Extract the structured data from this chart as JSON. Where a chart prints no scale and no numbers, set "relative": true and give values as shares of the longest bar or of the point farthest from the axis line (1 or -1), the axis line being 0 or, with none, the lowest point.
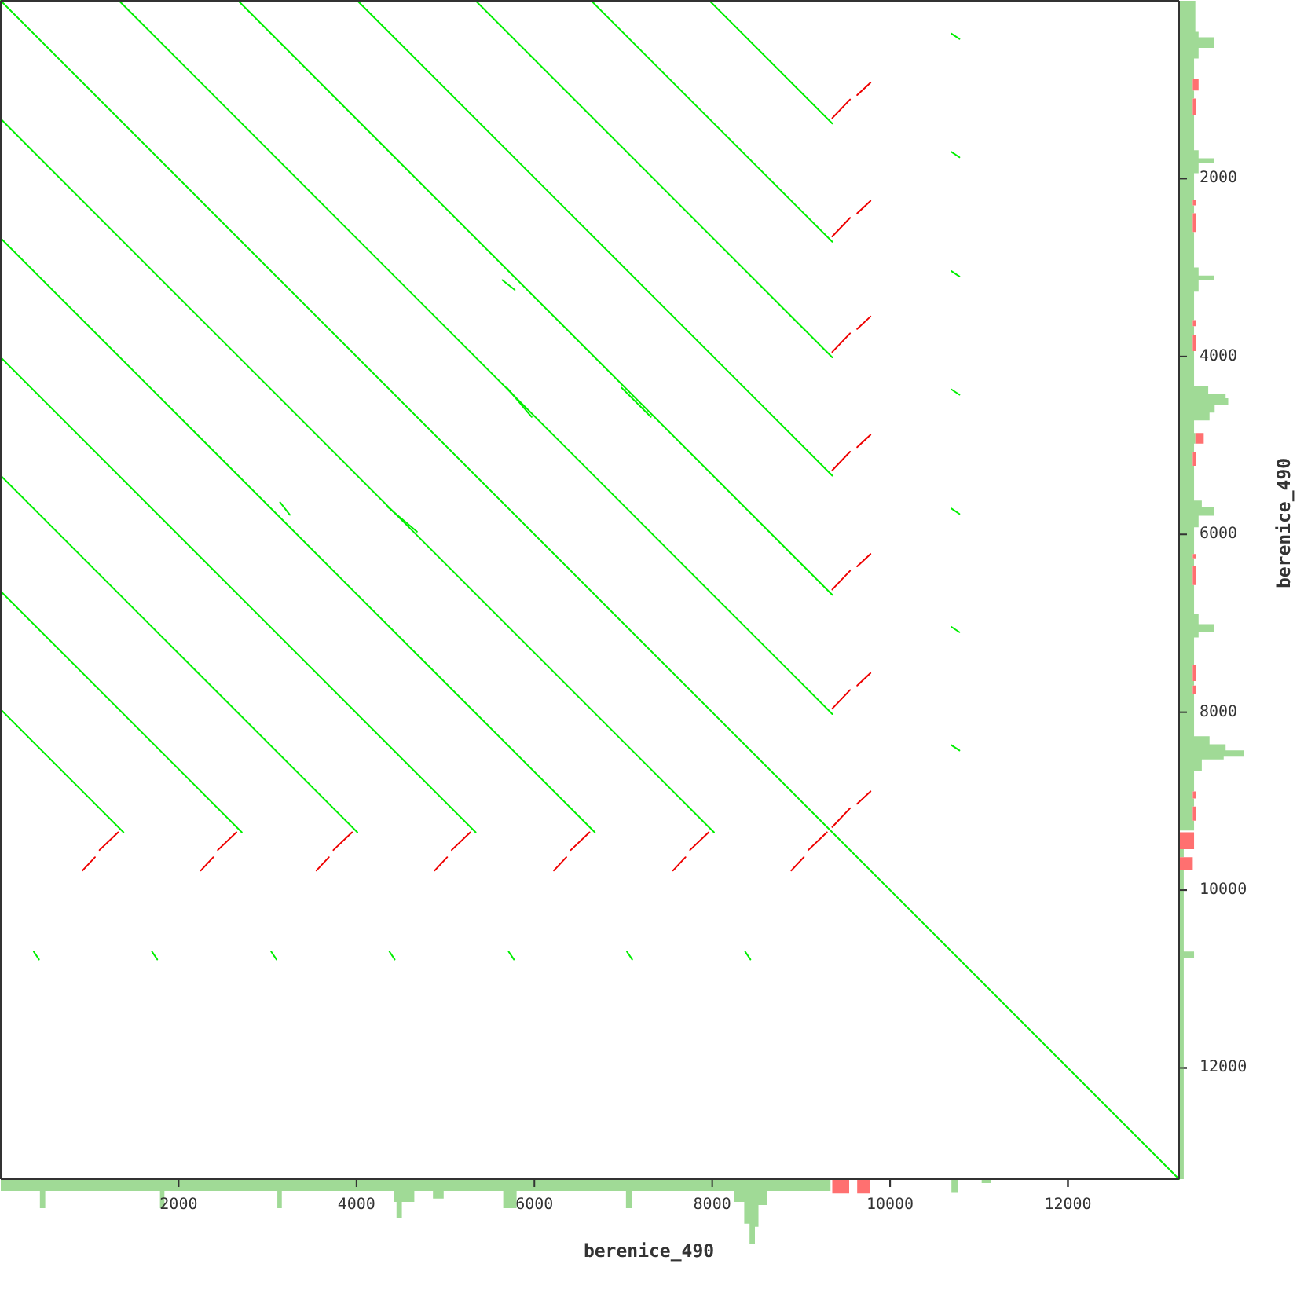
{
  "chart_data": [
    {
      "type": "line",
      "xlim": [
        0,
        13250
      ],
      "ylim": [
        13250,
        0
      ],
      "xticks": [
        2000,
        4000,
        6000,
        8000,
        10000,
        12000
      ],
      "yticks": [
        2000,
        4000,
        6000,
        8000,
        10000,
        12000
      ],
      "tick_labels": false,
      "series": [
        {
          "color": "#00ee00",
          "x": [
            0,
            13250
          ],
          "values": [
            0,
            13250
          ]
        },
        {
          "color": "#00ee00",
          "x": [
            1330,
            9350
          ],
          "values": [
            0,
            8020
          ]
        },
        {
          "color": "#00ee00",
          "x": [
            2670,
            9350
          ],
          "values": [
            0,
            6680
          ]
        },
        {
          "color": "#00ee00",
          "x": [
            4010,
            9350
          ],
          "values": [
            0,
            5340
          ]
        },
        {
          "color": "#00ee00",
          "x": [
            5340,
            9350
          ],
          "values": [
            0,
            4010
          ]
        },
        {
          "color": "#00ee00",
          "x": [
            6640,
            9350
          ],
          "values": [
            0,
            2710
          ]
        },
        {
          "color": "#00ee00",
          "x": [
            7970,
            9350
          ],
          "values": [
            0,
            1380
          ]
        },
        {
          "color": "#00ee00",
          "x": [
            0,
            8020
          ],
          "values": [
            1330,
            9350
          ]
        },
        {
          "color": "#00ee00",
          "x": [
            0,
            6680
          ],
          "values": [
            2670,
            9350
          ]
        },
        {
          "color": "#00ee00",
          "x": [
            0,
            5340
          ],
          "values": [
            4010,
            9350
          ]
        },
        {
          "color": "#00ee00",
          "x": [
            0,
            4010
          ],
          "values": [
            5340,
            9350
          ]
        },
        {
          "color": "#00ee00",
          "x": [
            0,
            2710
          ],
          "values": [
            6640,
            9350
          ]
        },
        {
          "color": "#00ee00",
          "x": [
            0,
            1380
          ],
          "values": [
            7970,
            9350
          ]
        },
        {
          "color": "#00ee00",
          "x": [
            5690,
            5970
          ],
          "values": [
            4350,
            4680
          ]
        },
        {
          "color": "#00ee00",
          "x": [
            6980,
            7310
          ],
          "values": [
            4350,
            4680
          ]
        },
        {
          "color": "#00ee00",
          "x": [
            4350,
            4680
          ],
          "values": [
            5690,
            5970
          ]
        },
        {
          "color": "#00ee00",
          "x": [
            5640,
            5780
          ],
          "values": [
            3140,
            3250
          ]
        },
        {
          "color": "#00ee00",
          "x": [
            3140,
            3250
          ],
          "values": [
            5640,
            5780
          ]
        },
        {
          "color": "#00ee00",
          "x": [
            10690,
            10780
          ],
          "values": [
            370,
            430
          ]
        },
        {
          "color": "#00ee00",
          "x": [
            10690,
            10780
          ],
          "values": [
            1700,
            1760
          ]
        },
        {
          "color": "#00ee00",
          "x": [
            10690,
            10780
          ],
          "values": [
            3040,
            3100
          ]
        },
        {
          "color": "#00ee00",
          "x": [
            10690,
            10780
          ],
          "values": [
            4370,
            4430
          ]
        },
        {
          "color": "#00ee00",
          "x": [
            10690,
            10780
          ],
          "values": [
            5710,
            5770
          ]
        },
        {
          "color": "#00ee00",
          "x": [
            10690,
            10780
          ],
          "values": [
            7040,
            7100
          ]
        },
        {
          "color": "#00ee00",
          "x": [
            10690,
            10780
          ],
          "values": [
            8370,
            8430
          ]
        },
        {
          "color": "#00ee00",
          "x": [
            370,
            430
          ],
          "values": [
            10690,
            10780
          ]
        },
        {
          "color": "#00ee00",
          "x": [
            1700,
            1760
          ],
          "values": [
            10690,
            10780
          ]
        },
        {
          "color": "#00ee00",
          "x": [
            3040,
            3100
          ],
          "values": [
            10690,
            10780
          ]
        },
        {
          "color": "#00ee00",
          "x": [
            4370,
            4430
          ],
          "values": [
            10690,
            10780
          ]
        },
        {
          "color": "#00ee00",
          "x": [
            5710,
            5770
          ],
          "values": [
            10690,
            10780
          ]
        },
        {
          "color": "#00ee00",
          "x": [
            7040,
            7100
          ],
          "values": [
            10690,
            10780
          ]
        },
        {
          "color": "#00ee00",
          "x": [
            8370,
            8430
          ],
          "values": [
            10690,
            10780
          ]
        },
        {
          "color": "#ee0000",
          "x": [
            9350,
            9550
          ],
          "values": [
            9290,
            9080
          ]
        },
        {
          "color": "#ee0000",
          "x": [
            9630,
            9780
          ],
          "values": [
            9030,
            8890
          ]
        },
        {
          "color": "#ee0000",
          "x": [
            9350,
            9550
          ],
          "values": [
            7960,
            7750
          ]
        },
        {
          "color": "#ee0000",
          "x": [
            9630,
            9780
          ],
          "values": [
            7700,
            7560
          ]
        },
        {
          "color": "#ee0000",
          "x": [
            9350,
            9550
          ],
          "values": [
            6620,
            6410
          ]
        },
        {
          "color": "#ee0000",
          "x": [
            9630,
            9780
          ],
          "values": [
            6360,
            6220
          ]
        },
        {
          "color": "#ee0000",
          "x": [
            9350,
            9550
          ],
          "values": [
            5280,
            5070
          ]
        },
        {
          "color": "#ee0000",
          "x": [
            9630,
            9780
          ],
          "values": [
            5020,
            4880
          ]
        },
        {
          "color": "#ee0000",
          "x": [
            9350,
            9550
          ],
          "values": [
            3950,
            3740
          ]
        },
        {
          "color": "#ee0000",
          "x": [
            9630,
            9780
          ],
          "values": [
            3690,
            3550
          ]
        },
        {
          "color": "#ee0000",
          "x": [
            9350,
            9550
          ],
          "values": [
            2650,
            2440
          ]
        },
        {
          "color": "#ee0000",
          "x": [
            9630,
            9780
          ],
          "values": [
            2390,
            2250
          ]
        },
        {
          "color": "#ee0000",
          "x": [
            9350,
            9550
          ],
          "values": [
            1320,
            1110
          ]
        },
        {
          "color": "#ee0000",
          "x": [
            9630,
            9780
          ],
          "values": [
            1060,
            920
          ]
        },
        {
          "color": "#ee0000",
          "x": [
            9290,
            9080
          ],
          "values": [
            9350,
            9550
          ]
        },
        {
          "color": "#ee0000",
          "x": [
            9030,
            8890
          ],
          "values": [
            9630,
            9780
          ]
        },
        {
          "color": "#ee0000",
          "x": [
            7960,
            7750
          ],
          "values": [
            9350,
            9550
          ]
        },
        {
          "color": "#ee0000",
          "x": [
            7700,
            7560
          ],
          "values": [
            9630,
            9780
          ]
        },
        {
          "color": "#ee0000",
          "x": [
            6620,
            6410
          ],
          "values": [
            9350,
            9550
          ]
        },
        {
          "color": "#ee0000",
          "x": [
            6360,
            6220
          ],
          "values": [
            9630,
            9780
          ]
        },
        {
          "color": "#ee0000",
          "x": [
            5280,
            5070
          ],
          "values": [
            9350,
            9550
          ]
        },
        {
          "color": "#ee0000",
          "x": [
            5020,
            4880
          ],
          "values": [
            9630,
            9780
          ]
        },
        {
          "color": "#ee0000",
          "x": [
            3950,
            3740
          ],
          "values": [
            9350,
            9550
          ]
        },
        {
          "color": "#ee0000",
          "x": [
            3690,
            3550
          ],
          "values": [
            9630,
            9780
          ]
        },
        {
          "color": "#ee0000",
          "x": [
            2650,
            2440
          ],
          "values": [
            9350,
            9550
          ]
        },
        {
          "color": "#ee0000",
          "x": [
            2390,
            2250
          ],
          "values": [
            9630,
            9780
          ]
        },
        {
          "color": "#ee0000",
          "x": [
            1320,
            1110
          ],
          "values": [
            9350,
            9550
          ]
        },
        {
          "color": "#ee0000",
          "x": [
            1060,
            920
          ],
          "values": [
            9630,
            9780
          ]
        }
      ]
    },
    {
      "type": "area",
      "relative": true,
      "stacked": true,
      "xlabel": "berenice_490",
      "xlim": [
        0,
        13250
      ],
      "xticks": [
        2000,
        4000,
        6000,
        8000,
        10000,
        12000
      ],
      "x": [
        0,
        440,
        440,
        500,
        500,
        1790,
        1790,
        1840,
        1840,
        3110,
        3110,
        3160,
        3160,
        4420,
        4420,
        4450,
        4450,
        4510,
        4510,
        4650,
        4650,
        4860,
        4860,
        4980,
        4980,
        5650,
        5650,
        5800,
        5800,
        7030,
        7030,
        7100,
        7100,
        8250,
        8250,
        8360,
        8360,
        8420,
        8420,
        8480,
        8480,
        8520,
        8520,
        8620,
        8620,
        9330,
        9330,
        9350,
        9350,
        9540,
        9540,
        9630,
        9630,
        9770,
        9770,
        10690,
        10690,
        10760,
        10760,
        11030,
        11030,
        11130,
        11130,
        13250
      ],
      "series": [
        {
          "color": "#a0da96",
          "values": [
            -0.17,
            -0.17,
            -0.44,
            -0.44,
            -0.17,
            -0.17,
            -0.44,
            -0.44,
            -0.17,
            -0.17,
            -0.44,
            -0.44,
            -0.17,
            -0.17,
            -0.34,
            -0.34,
            -0.59,
            -0.59,
            -0.34,
            -0.34,
            -0.17,
            -0.17,
            -0.29,
            -0.29,
            -0.17,
            -0.17,
            -0.44,
            -0.44,
            -0.17,
            -0.17,
            -0.44,
            -0.44,
            -0.17,
            -0.17,
            -0.34,
            -0.34,
            -0.68,
            -0.68,
            -1,
            -1,
            -0.73,
            -0.73,
            -0.39,
            -0.39,
            -0.17,
            -0.17,
            0,
            0,
            0,
            0,
            0,
            0,
            0,
            0,
            0,
            0,
            -0.2,
            -0.2,
            0,
            0,
            -0.05,
            -0.05,
            0,
            0
          ]
        },
        {
          "color": "#ff7070",
          "values": [
            null,
            null,
            null,
            null,
            null,
            null,
            null,
            null,
            null,
            null,
            null,
            null,
            null,
            null,
            null,
            null,
            null,
            null,
            null,
            null,
            null,
            null,
            null,
            null,
            null,
            null,
            null,
            null,
            null,
            null,
            null,
            null,
            null,
            null,
            null,
            null,
            null,
            null,
            null,
            null,
            null,
            null,
            null,
            null,
            null,
            null,
            null,
            null,
            -0.21,
            -0.21,
            null,
            null,
            -0.21,
            -0.21,
            null,
            null,
            null,
            null,
            null,
            null,
            null,
            null,
            null,
            null
          ]
        }
      ]
    },
    {
      "type": "area",
      "relative": true,
      "stacked": true,
      "orientation": "horizontal",
      "ylabel": "berenice_490",
      "ylim": [
        13250,
        0
      ],
      "yticks": [
        2000,
        4000,
        6000,
        8000,
        10000,
        12000
      ],
      "x": [
        0,
        350,
        350,
        410,
        410,
        530,
        530,
        650,
        650,
        880,
        880,
        1010,
        1010,
        1100,
        1100,
        1290,
        1290,
        1680,
        1680,
        1770,
        1770,
        1820,
        1820,
        1940,
        1940,
        2240,
        2240,
        2300,
        2300,
        2390,
        2390,
        2600,
        2600,
        3000,
        3000,
        3090,
        3090,
        3140,
        3140,
        3270,
        3270,
        3590,
        3590,
        3660,
        3660,
        3760,
        3760,
        3940,
        3940,
        4330,
        4330,
        4420,
        4420,
        4470,
        4470,
        4540,
        4540,
        4630,
        4630,
        4720,
        4720,
        4860,
        4860,
        4980,
        4980,
        5070,
        5070,
        5230,
        5230,
        5620,
        5620,
        5690,
        5690,
        5790,
        5790,
        5920,
        5920,
        6220,
        6220,
        6270,
        6270,
        6360,
        6360,
        6570,
        6570,
        6890,
        6890,
        7010,
        7010,
        7100,
        7100,
        7160,
        7160,
        7470,
        7470,
        7650,
        7650,
        7700,
        7700,
        7790,
        7790,
        8270,
        8270,
        8360,
        8360,
        8430,
        8430,
        8500,
        8500,
        8530,
        8530,
        8660,
        8660,
        8890,
        8890,
        8970,
        8970,
        9060,
        9060,
        9220,
        9220,
        9330,
        9330,
        9350,
        9350,
        9540,
        9540,
        9630,
        9630,
        9770,
        9770,
        10690,
        10690,
        10760,
        10760,
        13250
      ],
      "series": [
        {
          "color": "#a0da96",
          "values": [
            0.24,
            0.24,
            0.29,
            0.29,
            0.53,
            0.53,
            0.29,
            0.29,
            0.22,
            0.22,
            0.2,
            0.2,
            0.22,
            0.22,
            0.2,
            0.2,
            0.22,
            0.22,
            0.29,
            0.29,
            0.53,
            0.53,
            0.29,
            0.29,
            0.22,
            0.22,
            0.2,
            0.2,
            0.22,
            0.22,
            0.2,
            0.2,
            0.22,
            0.22,
            0.29,
            0.29,
            0.53,
            0.53,
            0.29,
            0.29,
            0.22,
            0.22,
            0.2,
            0.2,
            0.22,
            0.22,
            0.2,
            0.2,
            0.22,
            0.22,
            0.44,
            0.44,
            0.71,
            0.71,
            0.75,
            0.75,
            0.54,
            0.54,
            0.46,
            0.46,
            0.22,
            0.22,
            0.24,
            0.24,
            0.22,
            0.22,
            0.2,
            0.2,
            0.22,
            0.22,
            0.34,
            0.34,
            0.53,
            0.53,
            0.29,
            0.29,
            0.22,
            0.22,
            0.2,
            0.2,
            0.22,
            0.22,
            0.2,
            0.2,
            0.22,
            0.22,
            0.29,
            0.29,
            0.53,
            0.53,
            0.29,
            0.29,
            0.22,
            0.22,
            0.2,
            0.2,
            0.22,
            0.22,
            0.2,
            0.2,
            0.22,
            0.22,
            0.46,
            0.46,
            0.71,
            0.71,
            1,
            1,
            0.68,
            0.68,
            0.34,
            0.34,
            0.22,
            0.22,
            0.2,
            0.2,
            0.22,
            0.22,
            0.2,
            0.2,
            0.22,
            0.22,
            0,
            0,
            0,
            0,
            0.06,
            0.06,
            0,
            0,
            0.06,
            0.06,
            0.22,
            0.22,
            0.06,
            0.06
          ]
        },
        {
          "color": "#ff7070",
          "values": [
            null,
            null,
            null,
            null,
            null,
            null,
            null,
            null,
            null,
            null,
            0.09,
            0.09,
            0,
            0,
            0.05,
            0.05,
            null,
            null,
            null,
            null,
            null,
            null,
            null,
            null,
            null,
            null,
            0.05,
            0.05,
            0,
            0,
            0.05,
            0.05,
            null,
            null,
            null,
            null,
            null,
            null,
            null,
            null,
            null,
            null,
            0.05,
            0.05,
            0,
            0,
            0.05,
            0.05,
            null,
            null,
            null,
            null,
            null,
            null,
            null,
            null,
            null,
            null,
            null,
            null,
            null,
            null,
            0.13,
            0.13,
            0,
            0,
            0.05,
            0.05,
            null,
            null,
            null,
            null,
            null,
            null,
            null,
            null,
            null,
            null,
            0.05,
            0.05,
            0,
            0,
            0.05,
            0.05,
            null,
            null,
            null,
            null,
            null,
            null,
            null,
            null,
            null,
            null,
            0.05,
            0.05,
            0,
            0,
            0.05,
            0.05,
            null,
            null,
            null,
            null,
            null,
            null,
            null,
            null,
            null,
            null,
            null,
            null,
            null,
            null,
            0.05,
            0.05,
            0,
            0,
            0.05,
            0.05,
            null,
            null,
            null,
            null,
            0.22,
            0.22,
            null,
            null,
            0.2,
            0.2,
            null,
            null,
            null,
            null,
            null,
            null
          ]
        }
      ]
    }
  ]
}
